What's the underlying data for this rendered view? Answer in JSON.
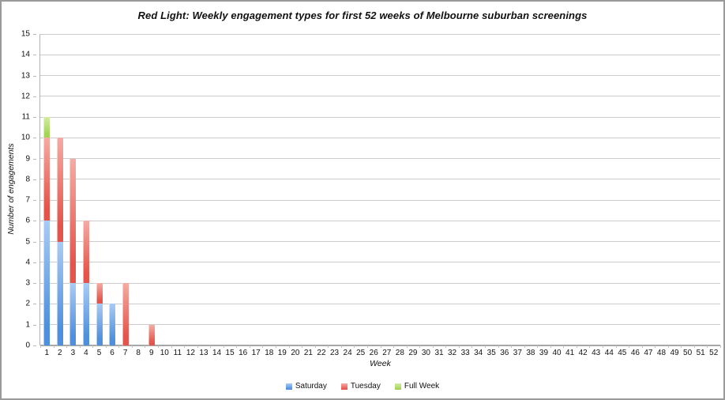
{
  "chart_data": {
    "type": "bar",
    "stacked": true,
    "title": "Red Light: Weekly engagement types for first 52 weeks of Melbourne suburban screenings",
    "xlabel": "Week",
    "ylabel": "Number of engagements",
    "ylim": [
      0,
      15
    ],
    "ytick_step": 1,
    "grid": true,
    "legend_position": "bottom",
    "categories": [
      1,
      2,
      3,
      4,
      5,
      6,
      7,
      8,
      9,
      10,
      11,
      12,
      13,
      14,
      15,
      16,
      17,
      18,
      19,
      20,
      21,
      22,
      23,
      24,
      25,
      26,
      27,
      28,
      29,
      30,
      31,
      32,
      33,
      34,
      35,
      36,
      37,
      38,
      39,
      40,
      41,
      42,
      43,
      44,
      45,
      46,
      47,
      48,
      49,
      50,
      51,
      52
    ],
    "series": [
      {
        "name": "Saturday",
        "color": "#4e90dd",
        "color_light": "#a9cbf5",
        "values": [
          6,
          5,
          3,
          3,
          2,
          2,
          0,
          0,
          0,
          0,
          0,
          0,
          0,
          0,
          0,
          0,
          0,
          0,
          0,
          0,
          0,
          0,
          0,
          0,
          0,
          0,
          0,
          0,
          0,
          0,
          0,
          0,
          0,
          0,
          0,
          0,
          0,
          0,
          0,
          0,
          0,
          0,
          0,
          0,
          0,
          0,
          0,
          0,
          0,
          0,
          0,
          0
        ]
      },
      {
        "name": "Tuesday",
        "color": "#e5544a",
        "color_light": "#f5aba3",
        "values": [
          4,
          5,
          6,
          3,
          1,
          0,
          3,
          0,
          1,
          0,
          0,
          0,
          0,
          0,
          0,
          0,
          0,
          0,
          0,
          0,
          0,
          0,
          0,
          0,
          0,
          0,
          0,
          0,
          0,
          0,
          0,
          0,
          0,
          0,
          0,
          0,
          0,
          0,
          0,
          0,
          0,
          0,
          0,
          0,
          0,
          0,
          0,
          0,
          0,
          0,
          0,
          0
        ]
      },
      {
        "name": "Full Week",
        "color": "#a3d455",
        "color_light": "#d4eba3",
        "values": [
          1,
          0,
          0,
          0,
          0,
          0,
          0,
          0,
          0,
          0,
          0,
          0,
          0,
          0,
          0,
          0,
          0,
          0,
          0,
          0,
          0,
          0,
          0,
          0,
          0,
          0,
          0,
          0,
          0,
          0,
          0,
          0,
          0,
          0,
          0,
          0,
          0,
          0,
          0,
          0,
          0,
          0,
          0,
          0,
          0,
          0,
          0,
          0,
          0,
          0,
          0,
          0
        ]
      }
    ]
  }
}
